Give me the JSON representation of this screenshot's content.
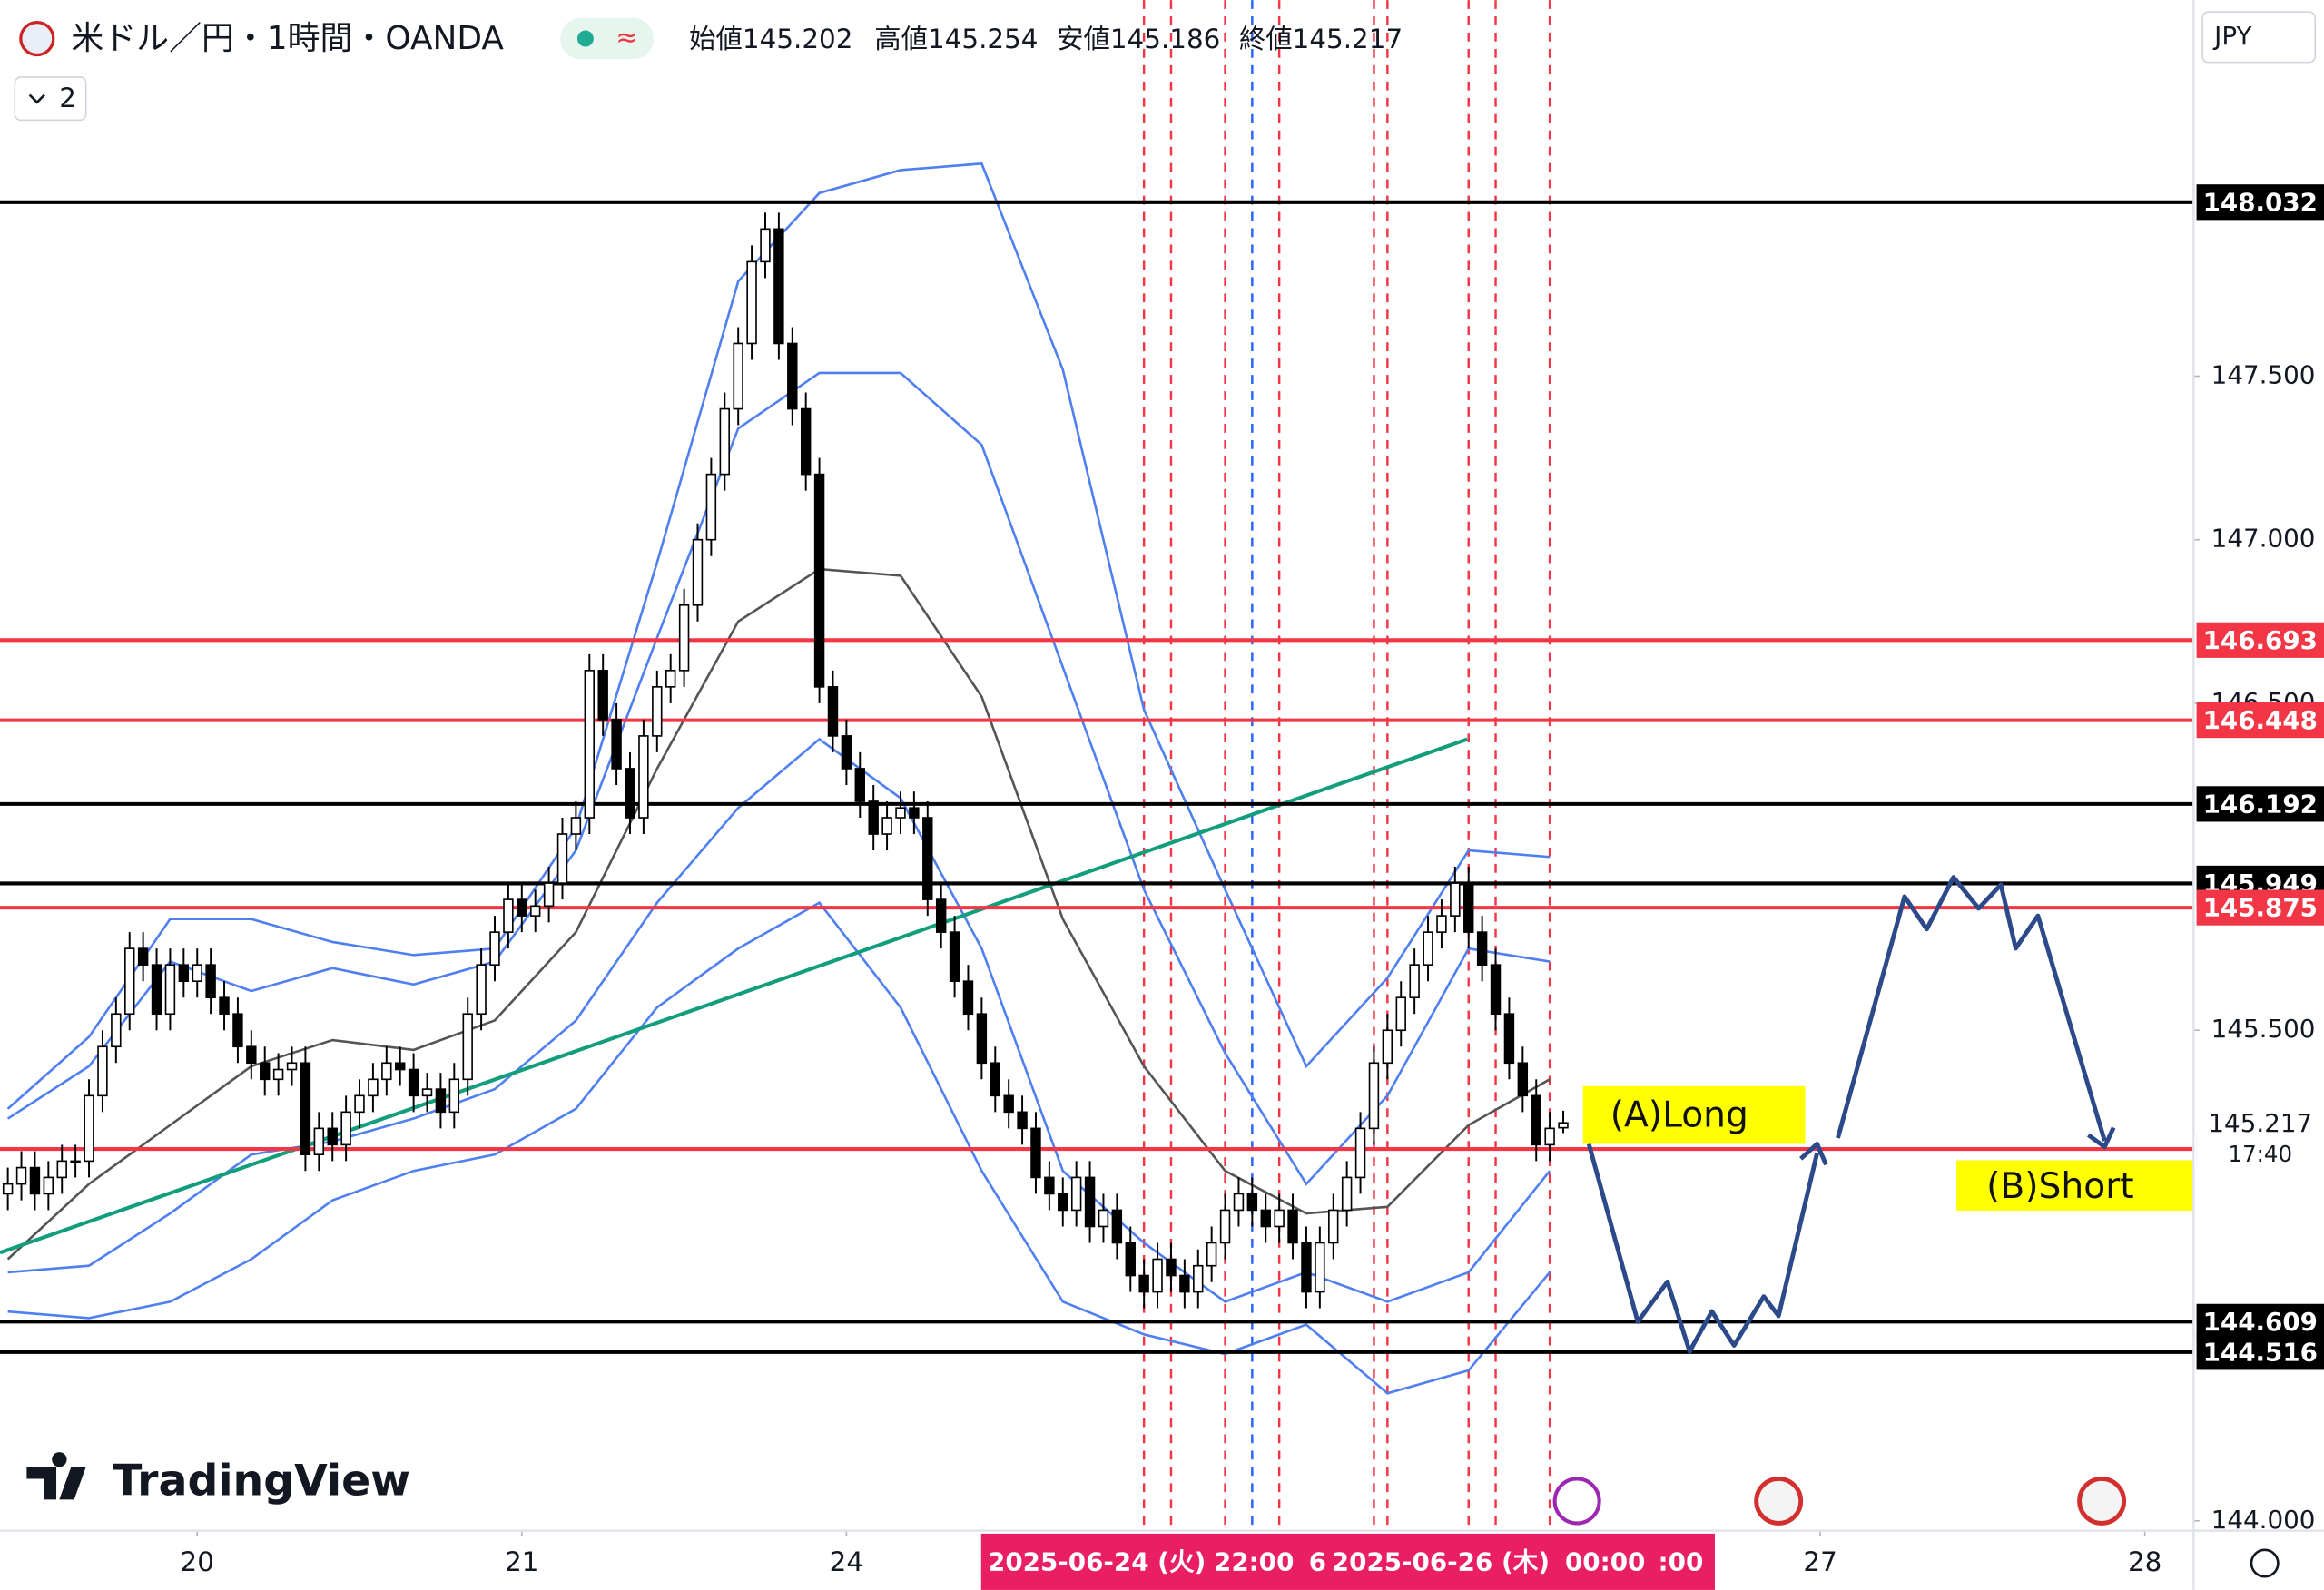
{
  "header": {
    "symbol": "米ドル／円・1時間・OANDA",
    "quote": [
      {
        "label": "始値",
        "value": "145.202"
      },
      {
        "label": "高値",
        "value": "145.254"
      },
      {
        "label": "安値",
        "value": "145.186"
      },
      {
        "label": "終値",
        "value": "145.217"
      }
    ],
    "collapse": "2",
    "currency": "JPY",
    "brand": "TradingView"
  },
  "chart_data": {
    "type": "candlestick",
    "xlim": [
      -14.58,
      147.6
    ],
    "ylim": [
      143.97,
      148.65
    ],
    "xticks": [
      {
        "value": 0,
        "label": "20"
      },
      {
        "value": 24,
        "label": "21"
      },
      {
        "value": 48,
        "label": "24"
      },
      {
        "value": 120,
        "label": "27"
      },
      {
        "value": 144,
        "label": "28"
      }
    ],
    "yticks": [
      {
        "value": 147.5,
        "label": "147.500"
      },
      {
        "value": 147,
        "label": "147.000"
      },
      {
        "value": 146.5,
        "label": "146.500"
      },
      {
        "value": 145.5,
        "label": "145.500"
      },
      {
        "value": 144,
        "label": "144.000"
      }
    ],
    "grid": false,
    "up_color": "#ffffff",
    "down_color": "#000000",
    "x": [
      -14,
      -13,
      -12,
      -11,
      -10,
      -9,
      -8,
      -7,
      -6,
      -5,
      -4,
      -3,
      -2,
      -1,
      0,
      1,
      2,
      3,
      4,
      5,
      6,
      7,
      8,
      9,
      10,
      11,
      12,
      13,
      14,
      15,
      16,
      17,
      18,
      19,
      20,
      21,
      22,
      23,
      24,
      25,
      26,
      27,
      28,
      29,
      30,
      31,
      32,
      33,
      34,
      35,
      36,
      37,
      38,
      39,
      40,
      41,
      42,
      43,
      44,
      45,
      46,
      47,
      48,
      49,
      50,
      51,
      52,
      53,
      54,
      55,
      56,
      57,
      58,
      59,
      60,
      61,
      62,
      63,
      64,
      65,
      66,
      67,
      68,
      69,
      70,
      71,
      72,
      73,
      74,
      75,
      76,
      77,
      78,
      79,
      80,
      81,
      82,
      83,
      84,
      85,
      86,
      87,
      88,
      89,
      90,
      91,
      92,
      93,
      94,
      95,
      96,
      97,
      98,
      99,
      100,
      101
    ],
    "ohlc": [
      [
        145.0,
        145.08,
        144.95,
        145.03
      ],
      [
        145.03,
        145.13,
        144.98,
        145.08
      ],
      [
        145.08,
        145.13,
        144.95,
        145.0
      ],
      [
        145.0,
        145.1,
        144.95,
        145.05
      ],
      [
        145.05,
        145.15,
        145.0,
        145.1
      ],
      [
        145.1,
        145.15,
        145.05,
        145.1
      ],
      [
        145.1,
        145.35,
        145.05,
        145.3
      ],
      [
        145.3,
        145.5,
        145.25,
        145.45
      ],
      [
        145.45,
        145.6,
        145.4,
        145.55
      ],
      [
        145.55,
        145.8,
        145.5,
        145.75
      ],
      [
        145.75,
        145.8,
        145.65,
        145.7
      ],
      [
        145.7,
        145.75,
        145.5,
        145.55
      ],
      [
        145.55,
        145.75,
        145.5,
        145.7
      ],
      [
        145.7,
        145.75,
        145.6,
        145.65
      ],
      [
        145.65,
        145.75,
        145.6,
        145.7
      ],
      [
        145.7,
        145.75,
        145.55,
        145.6
      ],
      [
        145.6,
        145.65,
        145.5,
        145.55
      ],
      [
        145.55,
        145.6,
        145.4,
        145.45
      ],
      [
        145.45,
        145.5,
        145.35,
        145.4
      ],
      [
        145.4,
        145.45,
        145.3,
        145.35
      ],
      [
        145.35,
        145.43,
        145.3,
        145.38
      ],
      [
        145.38,
        145.45,
        145.33,
        145.4
      ],
      [
        145.4,
        145.45,
        145.07,
        145.12
      ],
      [
        145.12,
        145.25,
        145.07,
        145.2
      ],
      [
        145.2,
        145.25,
        145.1,
        145.15
      ],
      [
        145.15,
        145.3,
        145.1,
        145.25
      ],
      [
        145.25,
        145.35,
        145.2,
        145.3
      ],
      [
        145.3,
        145.4,
        145.25,
        145.35
      ],
      [
        145.35,
        145.45,
        145.3,
        145.4
      ],
      [
        145.4,
        145.45,
        145.33,
        145.38
      ],
      [
        145.38,
        145.43,
        145.25,
        145.3
      ],
      [
        145.3,
        145.37,
        145.25,
        145.32
      ],
      [
        145.32,
        145.37,
        145.2,
        145.25
      ],
      [
        145.25,
        145.4,
        145.2,
        145.35
      ],
      [
        145.35,
        145.6,
        145.3,
        145.55
      ],
      [
        145.55,
        145.75,
        145.5,
        145.7
      ],
      [
        145.7,
        145.85,
        145.65,
        145.8
      ],
      [
        145.8,
        145.95,
        145.75,
        145.9
      ],
      [
        145.9,
        145.95,
        145.8,
        145.85
      ],
      [
        145.85,
        145.93,
        145.8,
        145.88
      ],
      [
        145.88,
        146.0,
        145.83,
        145.95
      ],
      [
        145.95,
        146.15,
        145.9,
        146.1
      ],
      [
        146.1,
        146.2,
        146.05,
        146.15
      ],
      [
        146.15,
        146.65,
        146.1,
        146.6
      ],
      [
        146.6,
        146.65,
        146.4,
        146.45
      ],
      [
        146.45,
        146.5,
        146.25,
        146.3
      ],
      [
        146.3,
        146.35,
        146.1,
        146.15
      ],
      [
        146.15,
        146.45,
        146.1,
        146.4
      ],
      [
        146.4,
        146.6,
        146.35,
        146.55
      ],
      [
        146.55,
        146.65,
        146.5,
        146.6
      ],
      [
        146.6,
        146.85,
        146.55,
        146.8
      ],
      [
        146.8,
        147.05,
        146.75,
        147.0
      ],
      [
        147.0,
        147.25,
        146.95,
        147.2
      ],
      [
        147.2,
        147.45,
        147.15,
        147.4
      ],
      [
        147.4,
        147.65,
        147.35,
        147.6
      ],
      [
        147.6,
        147.9,
        147.55,
        147.85
      ],
      [
        147.85,
        148.0,
        147.8,
        147.95
      ],
      [
        147.95,
        148.0,
        147.55,
        147.6
      ],
      [
        147.6,
        147.65,
        147.35,
        147.4
      ],
      [
        147.4,
        147.45,
        147.15,
        147.2
      ],
      [
        147.2,
        147.25,
        146.5,
        146.55
      ],
      [
        146.55,
        146.6,
        146.35,
        146.4
      ],
      [
        146.4,
        146.45,
        146.25,
        146.3
      ],
      [
        146.3,
        146.35,
        146.15,
        146.2
      ],
      [
        146.2,
        146.25,
        146.05,
        146.1
      ],
      [
        146.1,
        146.2,
        146.05,
        146.15
      ],
      [
        146.15,
        146.23,
        146.1,
        146.18
      ],
      [
        146.18,
        146.23,
        146.1,
        146.15
      ],
      [
        146.15,
        146.2,
        145.85,
        145.9
      ],
      [
        145.9,
        145.95,
        145.75,
        145.8
      ],
      [
        145.8,
        145.85,
        145.6,
        145.65
      ],
      [
        145.65,
        145.7,
        145.5,
        145.55
      ],
      [
        145.55,
        145.6,
        145.35,
        145.4
      ],
      [
        145.4,
        145.45,
        145.25,
        145.3
      ],
      [
        145.3,
        145.35,
        145.2,
        145.25
      ],
      [
        145.25,
        145.3,
        145.15,
        145.2
      ],
      [
        145.2,
        145.25,
        145.0,
        145.05
      ],
      [
        145.05,
        145.1,
        144.95,
        145.0
      ],
      [
        145.0,
        145.05,
        144.9,
        144.95
      ],
      [
        144.95,
        145.1,
        144.9,
        145.05
      ],
      [
        145.05,
        145.1,
        144.85,
        144.9
      ],
      [
        144.9,
        145.0,
        144.85,
        144.95
      ],
      [
        144.95,
        145.0,
        144.8,
        144.85
      ],
      [
        144.85,
        144.9,
        144.7,
        144.75
      ],
      [
        144.75,
        144.8,
        144.65,
        144.7
      ],
      [
        144.7,
        144.85,
        144.65,
        144.8
      ],
      [
        144.8,
        144.85,
        144.7,
        144.75
      ],
      [
        144.75,
        144.8,
        144.65,
        144.7
      ],
      [
        144.7,
        144.83,
        144.65,
        144.78
      ],
      [
        144.78,
        144.9,
        144.73,
        144.85
      ],
      [
        144.85,
        145.0,
        144.8,
        144.95
      ],
      [
        144.95,
        145.05,
        144.9,
        145.0
      ],
      [
        145.0,
        145.05,
        144.9,
        144.95
      ],
      [
        144.95,
        145.0,
        144.85,
        144.9
      ],
      [
        144.9,
        145.0,
        144.85,
        144.95
      ],
      [
        144.95,
        145.0,
        144.8,
        144.85
      ],
      [
        144.85,
        144.9,
        144.65,
        144.7
      ],
      [
        144.7,
        144.9,
        144.65,
        144.85
      ],
      [
        144.85,
        145.0,
        144.8,
        144.95
      ],
      [
        144.95,
        145.1,
        144.9,
        145.05
      ],
      [
        145.05,
        145.25,
        145.0,
        145.2
      ],
      [
        145.2,
        145.45,
        145.15,
        145.4
      ],
      [
        145.4,
        145.55,
        145.35,
        145.5
      ],
      [
        145.5,
        145.65,
        145.45,
        145.6
      ],
      [
        145.6,
        145.75,
        145.55,
        145.7
      ],
      [
        145.7,
        145.85,
        145.65,
        145.8
      ],
      [
        145.8,
        145.9,
        145.75,
        145.85
      ],
      [
        145.85,
        146.0,
        145.8,
        145.95
      ],
      [
        145.95,
        146.0,
        145.75,
        145.8
      ],
      [
        145.8,
        145.85,
        145.65,
        145.7
      ],
      [
        145.7,
        145.75,
        145.5,
        145.55
      ],
      [
        145.55,
        145.6,
        145.35,
        145.4
      ],
      [
        145.4,
        145.45,
        145.25,
        145.3
      ],
      [
        145.3,
        145.35,
        145.1,
        145.15
      ],
      [
        145.15,
        145.25,
        145.1,
        145.2
      ],
      [
        145.202,
        145.254,
        145.186,
        145.217
      ]
    ],
    "band_x": [
      -14,
      -8,
      -2,
      4,
      10,
      16,
      22,
      28,
      34,
      40,
      46,
      52,
      58,
      64,
      70,
      76,
      82,
      88,
      94,
      100
    ],
    "lines": [
      {
        "color": "#4f7ff0",
        "values": [
          145.26,
          145.48,
          145.84,
          145.84,
          145.77,
          145.73,
          145.75,
          146.12,
          146.93,
          147.79,
          148.06,
          148.13,
          148.15,
          147.52,
          146.48,
          145.93,
          145.39,
          145.66,
          146.05,
          146.03
        ]
      },
      {
        "color": "#4f7ff0",
        "values": [
          145.23,
          145.39,
          145.71,
          145.62,
          145.69,
          145.64,
          145.71,
          146.05,
          146.7,
          147.34,
          147.51,
          147.51,
          147.29,
          146.61,
          145.93,
          145.43,
          145.03,
          145.3,
          145.75,
          145.71
        ]
      },
      {
        "color": "#555555",
        "values": [
          144.8,
          145.03,
          145.21,
          145.39,
          145.47,
          145.44,
          145.53,
          145.8,
          146.3,
          146.75,
          146.91,
          146.89,
          146.52,
          145.84,
          145.39,
          145.07,
          144.94,
          144.96,
          145.21,
          145.35
        ]
      },
      {
        "color": "#4f7ff0",
        "values": [
          144.76,
          144.78,
          144.94,
          145.12,
          145.16,
          145.23,
          145.32,
          145.53,
          145.89,
          146.18,
          146.39,
          146.21,
          145.75,
          145.07,
          144.85,
          144.67,
          144.76,
          144.67,
          144.76,
          145.07
        ]
      },
      {
        "color": "#4f7ff0",
        "values": [
          144.64,
          144.62,
          144.67,
          144.8,
          144.98,
          145.07,
          145.12,
          145.26,
          145.57,
          145.75,
          145.89,
          145.57,
          145.07,
          144.67,
          144.57,
          144.51,
          144.6,
          144.39,
          144.46,
          144.76
        ]
      }
    ],
    "trendline": {
      "color": "#129e7d",
      "x": [
        -14.58,
        93.9
      ],
      "values": [
        144.82,
        146.39
      ]
    },
    "levels": [
      {
        "value": 148.032,
        "color": "#000000"
      },
      {
        "value": 146.693,
        "color": "#f23645"
      },
      {
        "value": 146.448,
        "color": "#f23645"
      },
      {
        "value": 146.192,
        "color": "#000000"
      },
      {
        "value": 145.949,
        "color": "#000000"
      },
      {
        "value": 145.875,
        "color": "#f23645"
      },
      {
        "value": 145.137,
        "color": "#f23645"
      },
      {
        "value": 144.609,
        "color": "#000000"
      },
      {
        "value": 144.516,
        "color": "#000000"
      }
    ],
    "vlines": {
      "x": [
        70,
        72,
        76,
        78,
        80,
        87,
        88,
        94,
        96,
        100
      ],
      "colors": [
        "#f23645",
        "#f23645",
        "#f23645",
        "#2962ff",
        "#f23645",
        "#f23645",
        "#f23645",
        "#f23645",
        "#f23645",
        "#f23645"
      ]
    },
    "countdown": "17:40",
    "time_labels": [
      "2025-06-24 (火)",
      "22:00",
      "6",
      "2025-06-26 (木)",
      "00:00",
      ":00"
    ],
    "annotations": [
      "(A)Long",
      "(B)Short"
    ]
  }
}
